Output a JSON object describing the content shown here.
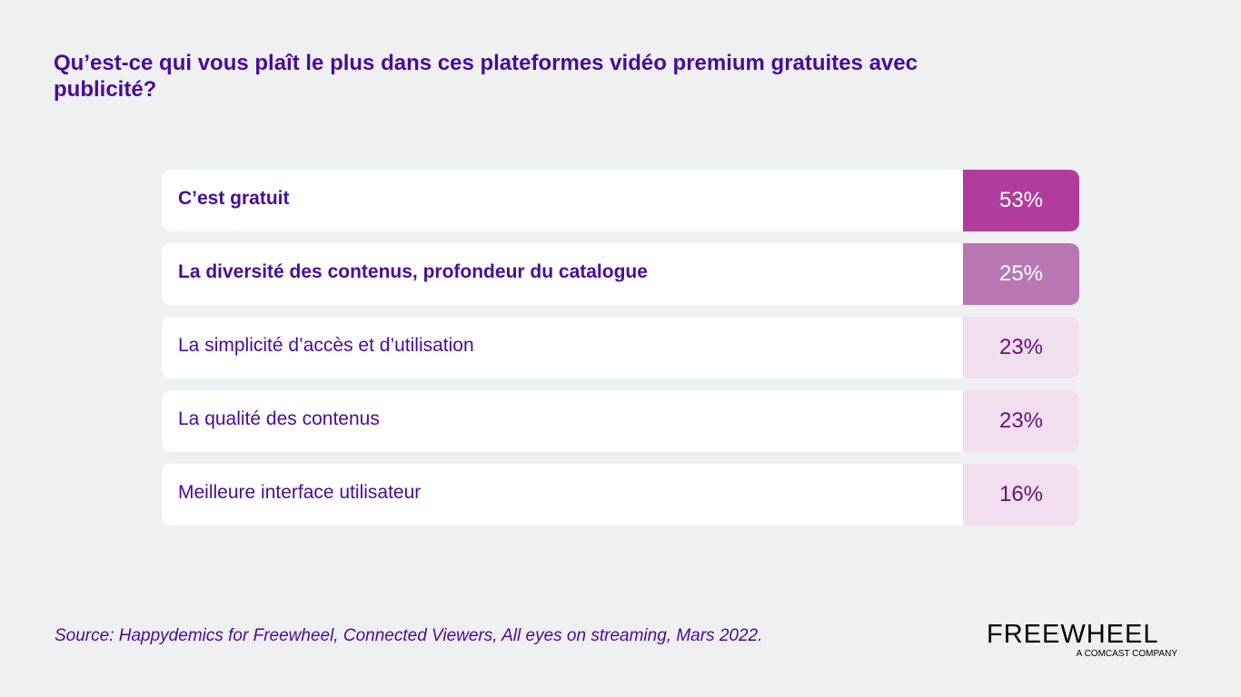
{
  "title": "Qu’est-ce qui vous plaît le plus dans ces plateformes vidéo premium gratuites avec publicité?",
  "chart_data": {
    "type": "table",
    "categories": [
      "C’est gratuit",
      "La diversité des contenus, profondeur du catalogue",
      "La simplicité d’accès et d’utilisation",
      "La qualité des contenus",
      "Meilleure interface utilisateur"
    ],
    "values": [
      53,
      25,
      23,
      23,
      16
    ],
    "value_labels": [
      "53%",
      "25%",
      "23%",
      "23%",
      "16%"
    ],
    "emphasis": [
      true,
      true,
      false,
      false,
      false
    ],
    "colors": [
      "#b03d9e",
      "#b877b2",
      "#f1dff0",
      "#f1dff0",
      "#f1dff0"
    ],
    "value_text_colors": [
      "#ffffff",
      "#ffffff",
      "#6b0f73",
      "#6b0f73",
      "#6b0f73"
    ]
  },
  "source": "Source: Happydemics for Freewheel, Connected Viewers, All eyes on streaming, Mars 2022.",
  "logo": {
    "brand": "FREEWHEEL",
    "tagline": "A COMCAST COMPANY"
  }
}
